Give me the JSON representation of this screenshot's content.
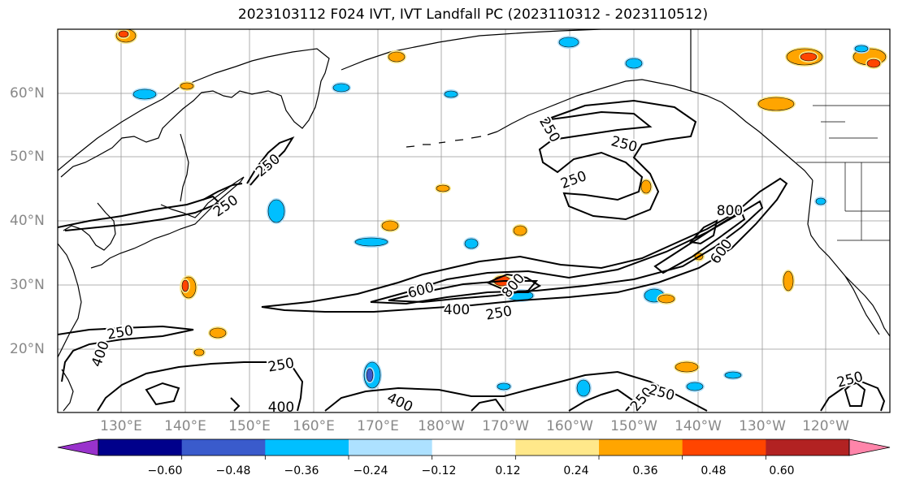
{
  "title": "2023103112 F024 IVT, IVT Landfall PC (2023110312 - 2023110512)",
  "lat_labels": [
    "60°N",
    "50°N",
    "40°N",
    "30°N",
    "20°N"
  ],
  "lon_labels": [
    "130°E",
    "140°E",
    "150°E",
    "160°E",
    "170°E",
    "180°W",
    "170°W",
    "160°W",
    "150°W",
    "140°W",
    "130°W",
    "120°W"
  ],
  "contour_labels": [
    "250",
    "250",
    "250",
    "250",
    "250",
    "250",
    "250",
    "250",
    "250",
    "250",
    "250",
    "400",
    "400",
    "400",
    "400",
    "600",
    "600",
    "800",
    "800"
  ],
  "colorbar": {
    "colors": [
      "#9932CC",
      "#00008B",
      "#3A5BCC",
      "#00BFFF",
      "#ADE1FF",
      "#FFFFFF",
      "#FFE88A",
      "#FFA500",
      "#FF4500",
      "#B22222",
      "#FF85AA"
    ],
    "ticks": [
      "−0.60",
      "−0.48",
      "−0.36",
      "−0.24",
      "−0.12",
      "0.12",
      "0.24",
      "0.36",
      "0.48",
      "0.60"
    ]
  },
  "colors": {
    "grid": "#999999",
    "coast": "#000000",
    "contour": "#000000",
    "tick_label": "#888888"
  }
}
